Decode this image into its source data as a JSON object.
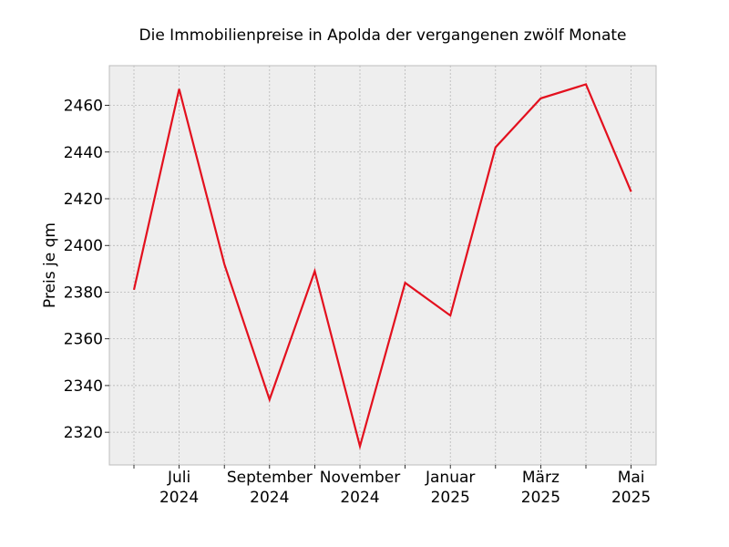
{
  "chart_data": {
    "type": "line",
    "title": "Die Immobilienpreise in Apolda der vergangenen zwölf Monate",
    "xlabel": "",
    "ylabel": "Preis je qm",
    "x": [
      "2024-06",
      "2024-07",
      "2024-08",
      "2024-09",
      "2024-10",
      "2024-11",
      "2024-12",
      "2025-01",
      "2025-02",
      "2025-03",
      "2025-04",
      "2025-05"
    ],
    "series": [
      {
        "values": [
          2381,
          2467,
          2392,
          2334,
          2389,
          2314,
          2384,
          2370,
          2442,
          2463,
          2469,
          2423
        ]
      }
    ],
    "ylim": [
      2306,
      2477
    ],
    "yticks": [
      2320,
      2340,
      2360,
      2380,
      2400,
      2420,
      2440,
      2460
    ],
    "xtick_labels": [
      {
        "x": "2024-07",
        "lines": [
          "Juli",
          "2024"
        ]
      },
      {
        "x": "2024-09",
        "lines": [
          "September",
          "2024"
        ]
      },
      {
        "x": "2024-11",
        "lines": [
          "November",
          "2024"
        ]
      },
      {
        "x": "2025-01",
        "lines": [
          "Januar",
          "2025"
        ]
      },
      {
        "x": "2025-03",
        "lines": [
          "März",
          "2025"
        ]
      },
      {
        "x": "2025-05",
        "lines": [
          "Mai",
          "2025"
        ]
      }
    ],
    "grid": true,
    "colors": {
      "line": "#e3101e",
      "plot_bg": "#eeeeee",
      "grid": "#b0b0b0",
      "frame": "#bcbcbc"
    }
  }
}
